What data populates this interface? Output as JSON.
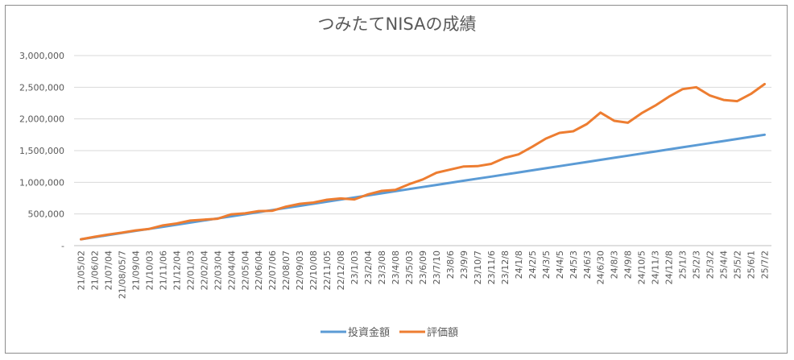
{
  "chart_data": {
    "type": "line",
    "title": "つみたてNISAの成績",
    "xlabel": "",
    "ylabel": "",
    "ylim": [
      0,
      3000000
    ],
    "y_ticks": [
      0,
      500000,
      1000000,
      1500000,
      2000000,
      2500000,
      3000000
    ],
    "y_tick_labels": [
      "-",
      "500,000",
      "1,000,000",
      "1,500,000",
      "2,000,000",
      "2,500,000",
      "3,000,000"
    ],
    "grid": true,
    "legend_position": "bottom",
    "x": [
      "21/05/02",
      "21/06/02",
      "21/07/04",
      "21/08/05/7",
      "21/09/04",
      "21/10/03",
      "21/11/06",
      "21/12/04",
      "22/01/03",
      "22/02/04",
      "22/03/04",
      "22/04/04",
      "22/05/04",
      "22/06/04",
      "22/07/06",
      "22/08/07",
      "22/09/03",
      "22/10/08",
      "22/11/05",
      "22/12/08",
      "23/1/03",
      "23/2/04",
      "23/3/08",
      "23/4/08",
      "23/5/03",
      "23/6/09",
      "23/7/10",
      "23/8/6",
      "23/9/9",
      "23/10/7",
      "23/11/6",
      "23/12/8",
      "24/1/8",
      "24/2/5",
      "24/3/5",
      "24/4/5",
      "24/5/3",
      "24/6/3",
      "24/6/30",
      "24/8/3",
      "24/9/8",
      "24/10/5",
      "24/11/3",
      "24/12/8",
      "25/1/3",
      "25/2/3",
      "25/3/2",
      "25/4/4",
      "25/5/2",
      "25/6/1",
      "25/7/2"
    ],
    "series": [
      {
        "name": "投資金額",
        "color": "#5b9bd5",
        "values": [
          100000,
          133000,
          166000,
          199000,
          232000,
          265000,
          298000,
          331000,
          364000,
          397000,
          430000,
          463000,
          496000,
          529000,
          562000,
          595000,
          628000,
          661000,
          694000,
          727000,
          760000,
          793000,
          826000,
          859000,
          892000,
          925000,
          958000,
          991000,
          1024000,
          1057000,
          1090000,
          1123000,
          1156000,
          1189000,
          1222000,
          1255000,
          1288000,
          1321000,
          1354000,
          1387000,
          1420000,
          1453000,
          1486000,
          1519000,
          1552000,
          1585000,
          1618000,
          1651000,
          1684000,
          1717000,
          1750000
        ]
      },
      {
        "name": "評価額",
        "color": "#ed7d31",
        "values": [
          100000,
          140000,
          175000,
          205000,
          240000,
          265000,
          320000,
          350000,
          395000,
          410000,
          425000,
          495000,
          510000,
          545000,
          550000,
          615000,
          660000,
          680000,
          725000,
          745000,
          730000,
          810000,
          865000,
          880000,
          970000,
          1045000,
          1150000,
          1200000,
          1250000,
          1255000,
          1290000,
          1385000,
          1440000,
          1560000,
          1690000,
          1780000,
          1805000,
          1920000,
          2100000,
          1970000,
          1940000,
          2090000,
          2210000,
          2350000,
          2470000,
          2500000,
          2370000,
          2300000,
          2280000,
          2395000,
          2550000
        ]
      }
    ]
  }
}
